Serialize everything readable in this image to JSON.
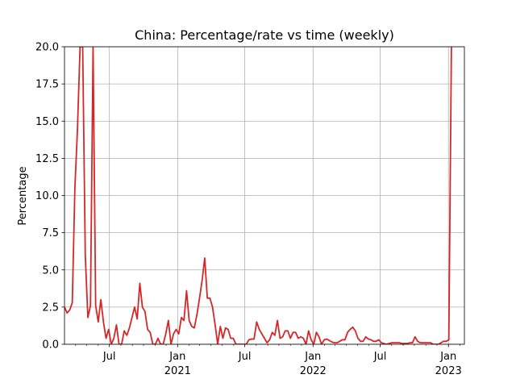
{
  "chart_data": {
    "type": "line",
    "title": "China: Percentage/rate vs time (weekly)",
    "xlabel": "",
    "ylabel": "Percentage",
    "ylim": [
      0,
      20
    ],
    "xlim": [
      "2020-03-02",
      "2023-02-13"
    ],
    "grid": true,
    "legend": "none",
    "y_ticks": [
      0,
      2.5,
      5,
      7.5,
      10,
      12.5,
      15,
      17.5,
      20
    ],
    "y_tick_labels": [
      "0.0",
      "2.5",
      "5.0",
      "7.5",
      "10.0",
      "12.5",
      "15.0",
      "17.5",
      "20.0"
    ],
    "x_ticks": [
      {
        "date": "2020-07-01",
        "label": "Jul",
        "year": ""
      },
      {
        "date": "2021-01-01",
        "label": "Jan",
        "year": "2021"
      },
      {
        "date": "2021-07-01",
        "label": "Jul",
        "year": ""
      },
      {
        "date": "2022-01-01",
        "label": "Jan",
        "year": "2022"
      },
      {
        "date": "2022-07-01",
        "label": "Jul",
        "year": ""
      },
      {
        "date": "2023-01-01",
        "label": "Jan",
        "year": "2023"
      }
    ],
    "minor_ticks": [
      "2020-04-01",
      "2020-05-01",
      "2020-06-01",
      "2020-08-01",
      "2020-09-01",
      "2020-10-01",
      "2020-11-01",
      "2020-12-01",
      "2021-02-01",
      "2021-03-01",
      "2021-04-01",
      "2021-05-01",
      "2021-06-01",
      "2021-08-01",
      "2021-09-01",
      "2021-10-01",
      "2021-11-01",
      "2021-12-01",
      "2022-02-01",
      "2022-03-01",
      "2022-04-01",
      "2022-05-01",
      "2022-06-01",
      "2022-08-01",
      "2022-09-01",
      "2022-10-01",
      "2022-11-01",
      "2022-12-01",
      "2023-02-01"
    ],
    "series": [
      {
        "color": "#d62728",
        "x": [
          "2020-03-02",
          "2020-03-09",
          "2020-03-16",
          "2020-03-23",
          "2020-03-30",
          "2020-04-06",
          "2020-04-13",
          "2020-04-20",
          "2020-04-27",
          "2020-05-04",
          "2020-05-11",
          "2020-05-18",
          "2020-05-25",
          "2020-06-01",
          "2020-06-08",
          "2020-06-15",
          "2020-06-22",
          "2020-06-29",
          "2020-07-06",
          "2020-07-13",
          "2020-07-20",
          "2020-07-27",
          "2020-08-03",
          "2020-08-10",
          "2020-08-17",
          "2020-08-24",
          "2020-08-31",
          "2020-09-07",
          "2020-09-14",
          "2020-09-21",
          "2020-09-28",
          "2020-10-05",
          "2020-10-12",
          "2020-10-19",
          "2020-10-26",
          "2020-11-02",
          "2020-11-09",
          "2020-11-16",
          "2020-11-23",
          "2020-11-30",
          "2020-12-07",
          "2020-12-14",
          "2020-12-21",
          "2020-12-28",
          "2021-01-04",
          "2021-01-11",
          "2021-01-18",
          "2021-01-25",
          "2021-02-01",
          "2021-02-08",
          "2021-02-15",
          "2021-02-22",
          "2021-03-01",
          "2021-03-08",
          "2021-03-15",
          "2021-03-22",
          "2021-03-29",
          "2021-04-05",
          "2021-04-12",
          "2021-04-19",
          "2021-04-26",
          "2021-05-03",
          "2021-05-10",
          "2021-05-17",
          "2021-05-24",
          "2021-05-31",
          "2021-06-07",
          "2021-06-14",
          "2021-06-21",
          "2021-06-28",
          "2021-07-05",
          "2021-07-12",
          "2021-07-19",
          "2021-07-26",
          "2021-08-02",
          "2021-08-09",
          "2021-08-16",
          "2021-08-23",
          "2021-08-30",
          "2021-09-06",
          "2021-09-13",
          "2021-09-20",
          "2021-09-27",
          "2021-10-04",
          "2021-10-11",
          "2021-10-18",
          "2021-10-25",
          "2021-11-01",
          "2021-11-08",
          "2021-11-15",
          "2021-11-22",
          "2021-11-29",
          "2021-12-06",
          "2021-12-13",
          "2021-12-20",
          "2021-12-27",
          "2022-01-03",
          "2022-01-10",
          "2022-01-17",
          "2022-01-24",
          "2022-01-31",
          "2022-02-07",
          "2022-02-14",
          "2022-02-21",
          "2022-02-28",
          "2022-03-07",
          "2022-03-14",
          "2022-03-21",
          "2022-03-28",
          "2022-04-04",
          "2022-04-11",
          "2022-04-18",
          "2022-04-25",
          "2022-05-02",
          "2022-05-09",
          "2022-05-16",
          "2022-05-23",
          "2022-05-30",
          "2022-06-06",
          "2022-06-13",
          "2022-06-20",
          "2022-06-27",
          "2022-07-04",
          "2022-07-11",
          "2022-07-18",
          "2022-07-25",
          "2022-08-01",
          "2022-08-08",
          "2022-08-15",
          "2022-08-22",
          "2022-08-29",
          "2022-09-05",
          "2022-09-12",
          "2022-09-19",
          "2022-09-26",
          "2022-10-03",
          "2022-10-10",
          "2022-10-17",
          "2022-10-24",
          "2022-10-31",
          "2022-11-07",
          "2022-11-14",
          "2022-11-21",
          "2022-11-28",
          "2022-12-05",
          "2022-12-12",
          "2022-12-19",
          "2022-12-26",
          "2023-01-02",
          "2023-01-09"
        ],
        "values": [
          2.5,
          2.1,
          2.3,
          2.8,
          10.5,
          14.5,
          20.0,
          20.0,
          6.0,
          1.8,
          2.6,
          20.0,
          2.6,
          1.5,
          3.0,
          1.5,
          0.4,
          1.0,
          0.0,
          0.4,
          1.3,
          0.0,
          0.0,
          0.9,
          0.6,
          1.1,
          1.8,
          2.5,
          1.7,
          4.1,
          2.5,
          2.2,
          1.0,
          0.8,
          0.0,
          0.0,
          0.4,
          0.0,
          0.0,
          0.7,
          1.6,
          0.0,
          0.7,
          1.0,
          0.7,
          1.8,
          1.6,
          3.6,
          1.6,
          1.2,
          1.1,
          2.0,
          3.1,
          4.3,
          5.8,
          3.1,
          3.1,
          2.5,
          1.3,
          0.0,
          1.2,
          0.4,
          1.1,
          1.0,
          0.4,
          0.4,
          0.0,
          0.0,
          0.0,
          0.0,
          0.0,
          0.3,
          0.35,
          0.35,
          1.5,
          1.0,
          0.7,
          0.4,
          0.1,
          0.3,
          0.8,
          0.6,
          1.6,
          0.4,
          0.5,
          0.9,
          0.9,
          0.4,
          0.8,
          0.8,
          0.4,
          0.5,
          0.4,
          0.0,
          0.9,
          0.3,
          0.0,
          0.8,
          0.5,
          0.0,
          0.3,
          0.35,
          0.25,
          0.15,
          0.1,
          0.1,
          0.2,
          0.3,
          0.3,
          0.8,
          1.0,
          1.15,
          0.9,
          0.4,
          0.2,
          0.2,
          0.5,
          0.35,
          0.3,
          0.2,
          0.2,
          0.3,
          0.1,
          0.05,
          0.0,
          0.05,
          0.1,
          0.1,
          0.1,
          0.1,
          0.05,
          0.05,
          0.05,
          0.1,
          0.1,
          0.5,
          0.2,
          0.1,
          0.1,
          0.1,
          0.1,
          0.1,
          0.0,
          0.0,
          0.0,
          0.1,
          0.2,
          0.2,
          0.3,
          20.0
        ]
      }
    ]
  }
}
